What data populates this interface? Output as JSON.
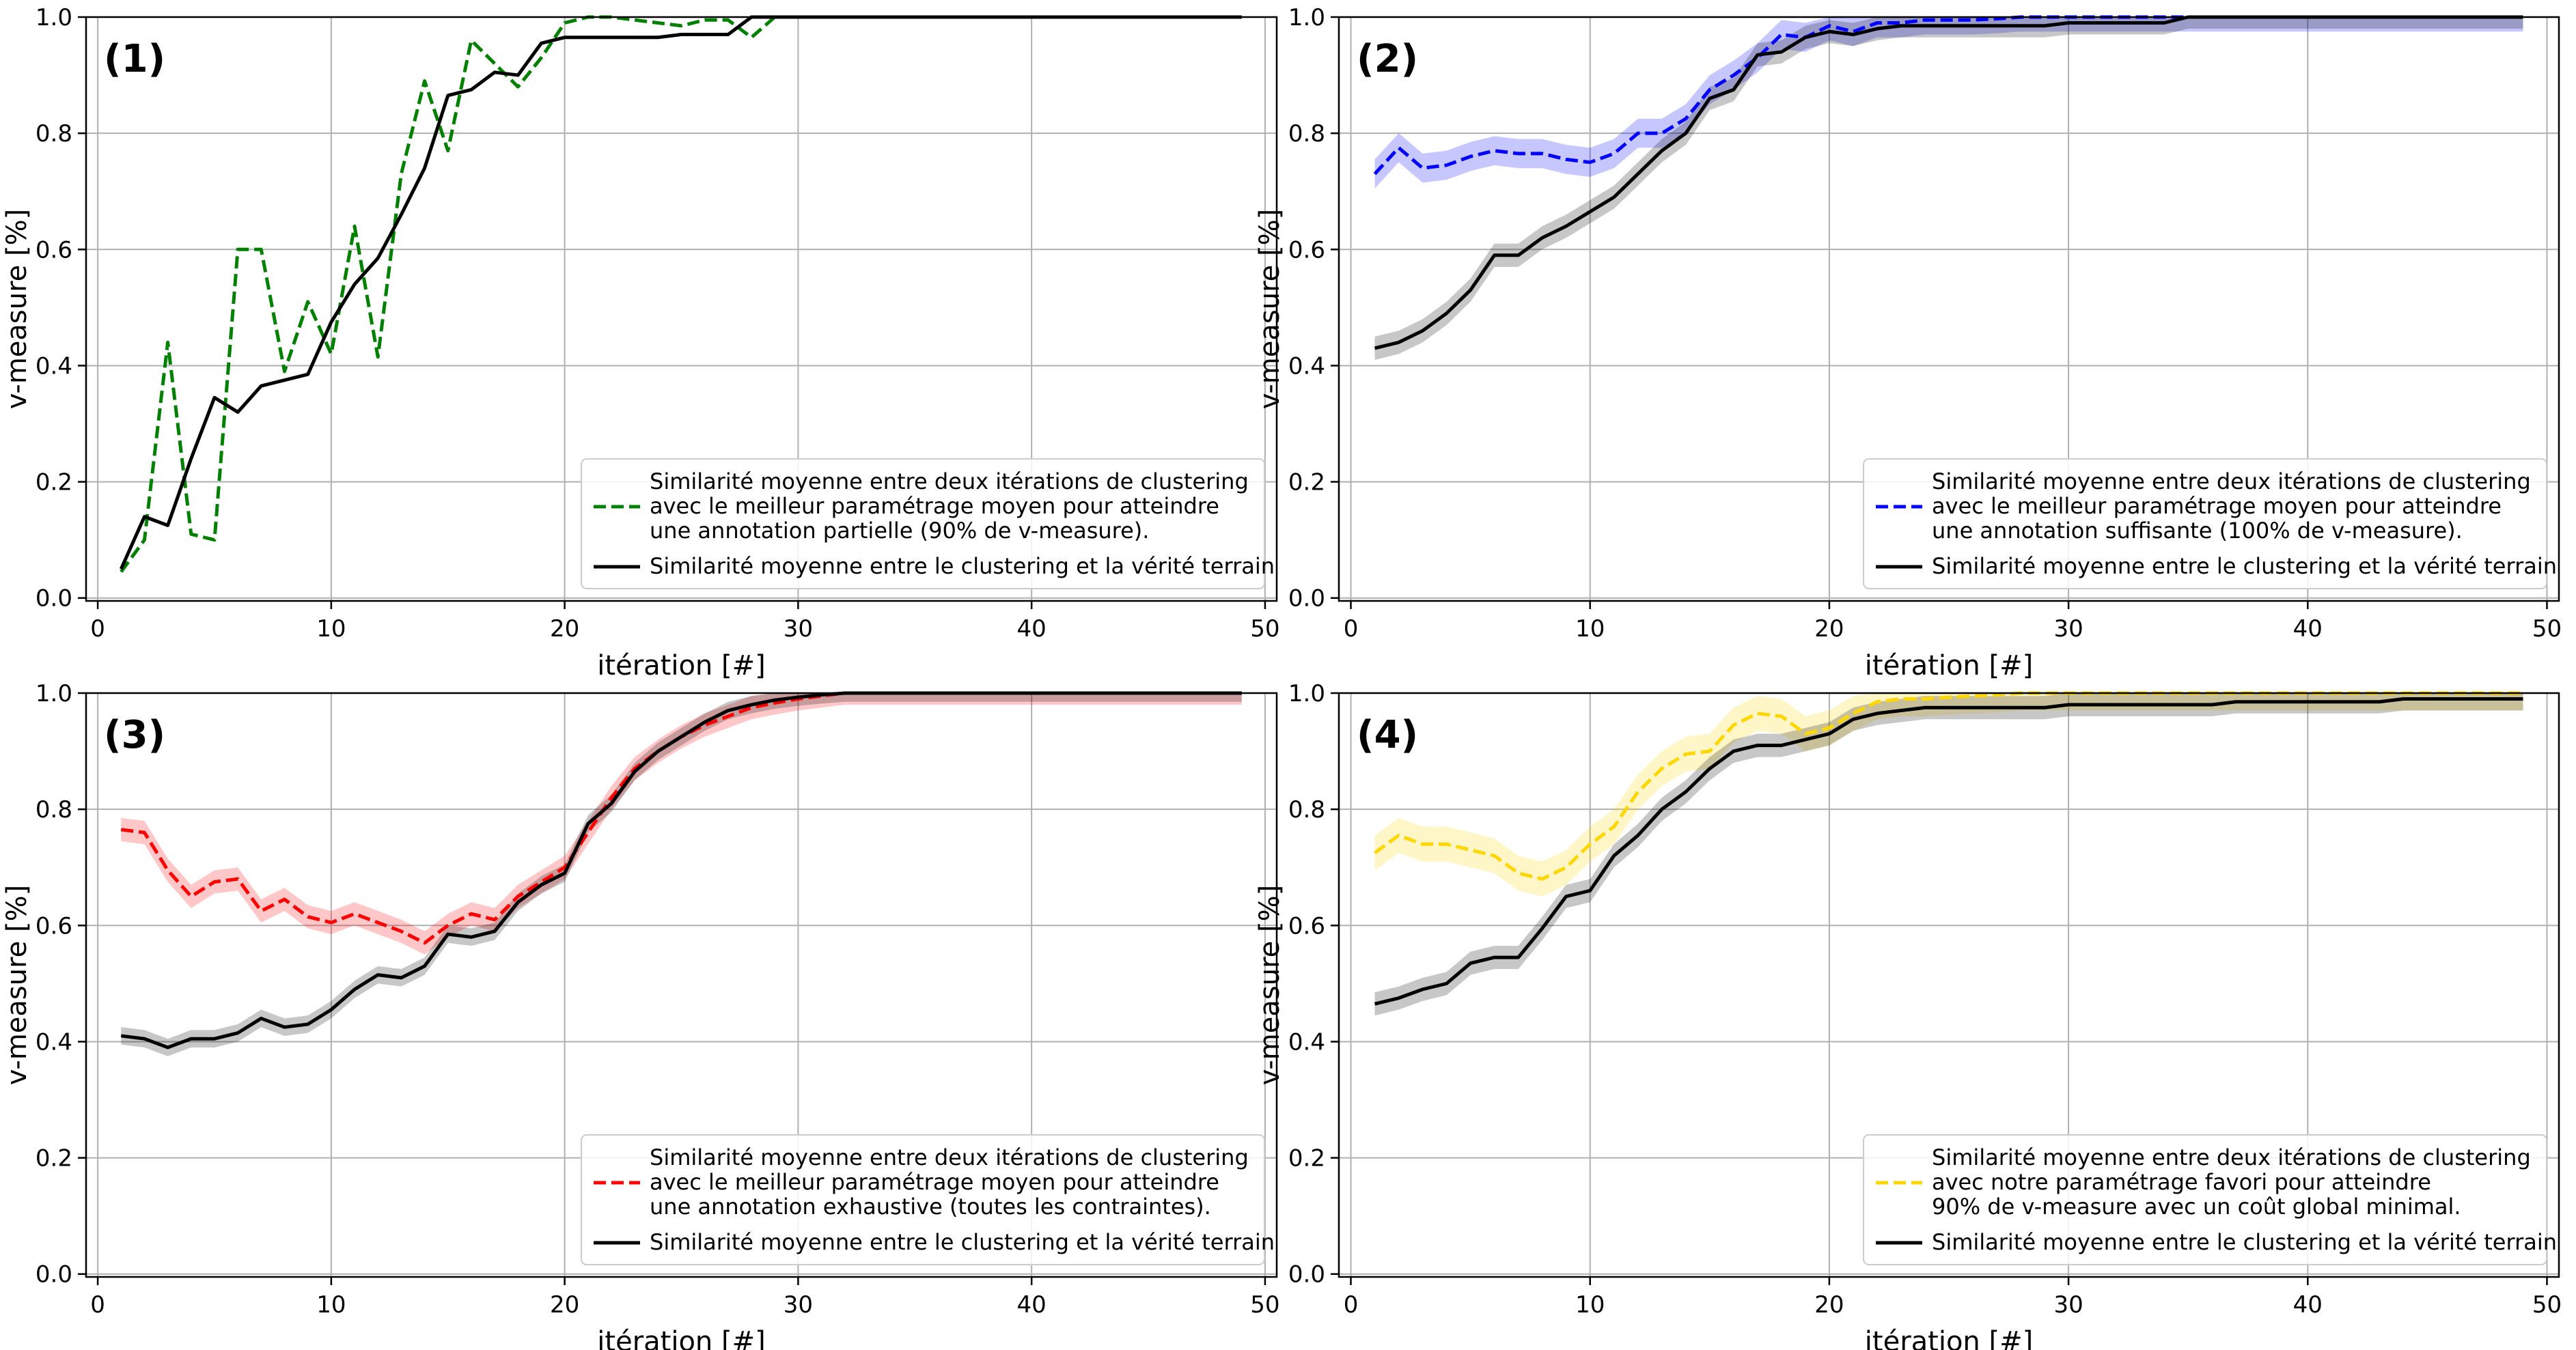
{
  "figure": {
    "xlabel": "itération [#]",
    "ylabel": "v-measure [%]",
    "legend_truth": "Similarité moyenne entre le clustering et la vérité terrain"
  },
  "chart_data": [
    {
      "type": "line",
      "panel_label": "(1)",
      "xlabel": "itération [#]",
      "ylabel": "v-measure [%]",
      "xlim": [
        -0.5,
        50.5
      ],
      "ylim": [
        -0.005,
        1.0
      ],
      "xticks": [
        0,
        10,
        20,
        30,
        40,
        50
      ],
      "yticks": [
        0.0,
        0.2,
        0.4,
        0.6,
        0.8,
        1.0
      ],
      "grid": true,
      "legend_position": "lower-right",
      "series": [
        {
          "name": "Similarité moyenne entre deux itérations de clustering avec le meilleur paramétrage moyen pour atteindre une annotation partielle (90% de v-measure).",
          "legend_lines": [
            "Similarité moyenne entre deux itérations de clustering",
            "avec le meilleur paramétrage moyen pour atteindre",
            "une annotation partielle (90% de v-measure)."
          ],
          "color": "#008000",
          "style": "dashed",
          "x": [
            1,
            2,
            3,
            4,
            5,
            6,
            7,
            8,
            9,
            10,
            11,
            12,
            13,
            14,
            15,
            16,
            17,
            18,
            19,
            20,
            21,
            22,
            23,
            24,
            25,
            26,
            27,
            28,
            29,
            30,
            31,
            32,
            33,
            34,
            35,
            36,
            37,
            38,
            39,
            40,
            41,
            42,
            43,
            44,
            45,
            46,
            47,
            48,
            49
          ],
          "y": [
            0.045,
            0.1,
            0.44,
            0.11,
            0.1,
            0.6,
            0.6,
            0.39,
            0.51,
            0.42,
            0.64,
            0.415,
            0.73,
            0.89,
            0.77,
            0.96,
            0.92,
            0.88,
            0.93,
            0.99,
            1.0,
            1.0,
            0.995,
            0.99,
            0.985,
            0.995,
            0.995,
            0.965,
            1.0,
            1.0,
            1.0,
            1.0,
            1.0,
            1.0,
            1.0,
            1.0,
            1.0,
            1.0,
            1.0,
            1.0,
            1.0,
            1.0,
            1.0,
            1.0,
            1.0,
            1.0,
            1.0,
            1.0,
            1.0
          ]
        },
        {
          "name": "Similarité moyenne entre le clustering et la vérité terrain",
          "color": "#000000",
          "style": "solid",
          "x": [
            1,
            2,
            3,
            4,
            5,
            6,
            7,
            8,
            9,
            10,
            11,
            12,
            13,
            14,
            15,
            16,
            17,
            18,
            19,
            20,
            21,
            22,
            23,
            24,
            25,
            26,
            27,
            28,
            29,
            30,
            31,
            32,
            33,
            34,
            35,
            36,
            37,
            38,
            39,
            40,
            41,
            42,
            43,
            44,
            45,
            46,
            47,
            48,
            49
          ],
          "y": [
            0.05,
            0.14,
            0.125,
            0.24,
            0.345,
            0.32,
            0.365,
            0.375,
            0.385,
            0.475,
            0.54,
            0.585,
            0.66,
            0.74,
            0.865,
            0.875,
            0.905,
            0.9,
            0.955,
            0.965,
            0.965,
            0.965,
            0.965,
            0.965,
            0.97,
            0.97,
            0.97,
            1.0,
            1.0,
            1.0,
            1.0,
            1.0,
            1.0,
            1.0,
            1.0,
            1.0,
            1.0,
            1.0,
            1.0,
            1.0,
            1.0,
            1.0,
            1.0,
            1.0,
            1.0,
            1.0,
            1.0,
            1.0,
            1.0
          ]
        }
      ]
    },
    {
      "type": "line",
      "panel_label": "(2)",
      "xlabel": "itération [#]",
      "ylabel": "v-measure [%]",
      "xlim": [
        -0.5,
        50.5
      ],
      "ylim": [
        -0.005,
        1.0
      ],
      "xticks": [
        0,
        10,
        20,
        30,
        40,
        50
      ],
      "yticks": [
        0.0,
        0.2,
        0.4,
        0.6,
        0.8,
        1.0
      ],
      "grid": true,
      "legend_position": "lower-right",
      "series": [
        {
          "name": "Similarité moyenne entre deux itérations de clustering avec le meilleur paramétrage moyen pour atteindre une annotation suffisante (100% de v-measure).",
          "legend_lines": [
            "Similarité moyenne entre deux itérations de clustering",
            "avec le meilleur paramétrage moyen pour atteindre",
            "une annotation suffisante (100% de v-measure)."
          ],
          "color": "#0000ff",
          "style": "dashed",
          "band": 0.025,
          "x": [
            1,
            2,
            3,
            4,
            5,
            6,
            7,
            8,
            9,
            10,
            11,
            12,
            13,
            14,
            15,
            16,
            17,
            18,
            19,
            20,
            21,
            22,
            23,
            24,
            25,
            26,
            27,
            28,
            29,
            30,
            31,
            32,
            33,
            34,
            35,
            36,
            37,
            38,
            39,
            40,
            41,
            42,
            43,
            44,
            45,
            46,
            47,
            48,
            49
          ],
          "y": [
            0.73,
            0.775,
            0.74,
            0.745,
            0.76,
            0.77,
            0.765,
            0.765,
            0.755,
            0.75,
            0.765,
            0.8,
            0.8,
            0.825,
            0.875,
            0.9,
            0.93,
            0.97,
            0.965,
            0.985,
            0.975,
            0.99,
            0.99,
            0.995,
            0.995,
            0.995,
            0.997,
            1.0,
            1.0,
            1.0,
            1.0,
            1.0,
            1.0,
            1.0,
            1.0,
            1.0,
            1.0,
            1.0,
            1.0,
            1.0,
            1.0,
            1.0,
            1.0,
            1.0,
            1.0,
            1.0,
            1.0,
            1.0,
            1.0
          ]
        },
        {
          "name": "Similarité moyenne entre le clustering et la vérité terrain",
          "color": "#000000",
          "style": "solid",
          "band": 0.02,
          "x": [
            1,
            2,
            3,
            4,
            5,
            6,
            7,
            8,
            9,
            10,
            11,
            12,
            13,
            14,
            15,
            16,
            17,
            18,
            19,
            20,
            21,
            22,
            23,
            24,
            25,
            26,
            27,
            28,
            29,
            30,
            31,
            32,
            33,
            34,
            35,
            36,
            37,
            38,
            39,
            40,
            41,
            42,
            43,
            44,
            45,
            46,
            47,
            48,
            49
          ],
          "y": [
            0.43,
            0.44,
            0.46,
            0.49,
            0.53,
            0.59,
            0.59,
            0.62,
            0.64,
            0.665,
            0.69,
            0.73,
            0.77,
            0.8,
            0.86,
            0.875,
            0.935,
            0.94,
            0.965,
            0.975,
            0.97,
            0.98,
            0.985,
            0.985,
            0.985,
            0.985,
            0.985,
            0.985,
            0.985,
            0.99,
            0.99,
            0.99,
            0.99,
            0.99,
            1.0,
            1.0,
            1.0,
            1.0,
            1.0,
            1.0,
            1.0,
            1.0,
            1.0,
            1.0,
            1.0,
            1.0,
            1.0,
            1.0,
            1.0
          ]
        }
      ]
    },
    {
      "type": "line",
      "panel_label": "(3)",
      "xlabel": "itération [#]",
      "ylabel": "v-measure [%]",
      "xlim": [
        -0.5,
        50.5
      ],
      "ylim": [
        -0.005,
        1.0
      ],
      "xticks": [
        0,
        10,
        20,
        30,
        40,
        50
      ],
      "yticks": [
        0.0,
        0.2,
        0.4,
        0.6,
        0.8,
        1.0
      ],
      "grid": true,
      "legend_position": "lower-right",
      "series": [
        {
          "name": "Similarité moyenne entre deux itérations de clustering avec le meilleur paramétrage moyen pour atteindre une annotation exhaustive (toutes les contraintes).",
          "legend_lines": [
            "Similarité moyenne entre deux itérations de clustering",
            "avec le meilleur paramétrage moyen pour atteindre",
            "une annotation exhaustive (toutes les contraintes)."
          ],
          "color": "#ff0000",
          "style": "dashed",
          "band": 0.02,
          "x": [
            1,
            2,
            3,
            4,
            5,
            6,
            7,
            8,
            9,
            10,
            11,
            12,
            13,
            14,
            15,
            16,
            17,
            18,
            19,
            20,
            21,
            22,
            23,
            24,
            25,
            26,
            27,
            28,
            29,
            30,
            31,
            32,
            33,
            34,
            35,
            36,
            37,
            38,
            39,
            40,
            41,
            42,
            43,
            44,
            45,
            46,
            47,
            48,
            49
          ],
          "y": [
            0.765,
            0.76,
            0.695,
            0.65,
            0.675,
            0.68,
            0.625,
            0.645,
            0.615,
            0.605,
            0.62,
            0.605,
            0.59,
            0.57,
            0.6,
            0.62,
            0.61,
            0.65,
            0.675,
            0.7,
            0.76,
            0.82,
            0.87,
            0.9,
            0.925,
            0.945,
            0.96,
            0.975,
            0.983,
            0.99,
            0.995,
            1.0,
            1.0,
            1.0,
            1.0,
            1.0,
            1.0,
            1.0,
            1.0,
            1.0,
            1.0,
            1.0,
            1.0,
            1.0,
            1.0,
            1.0,
            1.0,
            1.0,
            1.0
          ]
        },
        {
          "name": "Similarité moyenne entre le clustering et la vérité terrain",
          "color": "#000000",
          "style": "solid",
          "band": 0.015,
          "x": [
            1,
            2,
            3,
            4,
            5,
            6,
            7,
            8,
            9,
            10,
            11,
            12,
            13,
            14,
            15,
            16,
            17,
            18,
            19,
            20,
            21,
            22,
            23,
            24,
            25,
            26,
            27,
            28,
            29,
            30,
            31,
            32,
            33,
            34,
            35,
            36,
            37,
            38,
            39,
            40,
            41,
            42,
            43,
            44,
            45,
            46,
            47,
            48,
            49
          ],
          "y": [
            0.41,
            0.405,
            0.39,
            0.405,
            0.405,
            0.415,
            0.44,
            0.425,
            0.43,
            0.455,
            0.49,
            0.515,
            0.51,
            0.53,
            0.585,
            0.58,
            0.59,
            0.64,
            0.67,
            0.69,
            0.775,
            0.81,
            0.865,
            0.9,
            0.925,
            0.95,
            0.97,
            0.98,
            0.988,
            0.993,
            0.997,
            1.0,
            1.0,
            1.0,
            1.0,
            1.0,
            1.0,
            1.0,
            1.0,
            1.0,
            1.0,
            1.0,
            1.0,
            1.0,
            1.0,
            1.0,
            1.0,
            1.0,
            1.0
          ]
        }
      ]
    },
    {
      "type": "line",
      "panel_label": "(4)",
      "xlabel": "itération [#]",
      "ylabel": "v-measure [%]",
      "xlim": [
        -0.5,
        50.5
      ],
      "ylim": [
        -0.005,
        1.0
      ],
      "xticks": [
        0,
        10,
        20,
        30,
        40,
        50
      ],
      "yticks": [
        0.0,
        0.2,
        0.4,
        0.6,
        0.8,
        1.0
      ],
      "grid": true,
      "legend_position": "lower-right",
      "series": [
        {
          "name": "Similarité moyenne entre deux itérations de clustering avec notre paramétrage favori pour atteindre 90% de v-measure avec un coût global minimal.",
          "legend_lines": [
            "Similarité moyenne entre deux itérations de clustering",
            "avec notre paramétrage favori pour atteindre",
            "90% de v-measure avec un coût global minimal."
          ],
          "color": "#ffd700",
          "style": "dashed",
          "band": 0.03,
          "x": [
            1,
            2,
            3,
            4,
            5,
            6,
            7,
            8,
            9,
            10,
            11,
            12,
            13,
            14,
            15,
            16,
            17,
            18,
            19,
            20,
            21,
            22,
            23,
            24,
            25,
            26,
            27,
            28,
            29,
            30,
            31,
            32,
            33,
            34,
            35,
            36,
            37,
            38,
            39,
            40,
            41,
            42,
            43,
            44,
            45,
            46,
            47,
            48,
            49
          ],
          "y": [
            0.725,
            0.755,
            0.74,
            0.74,
            0.73,
            0.72,
            0.69,
            0.68,
            0.7,
            0.74,
            0.77,
            0.83,
            0.87,
            0.895,
            0.9,
            0.945,
            0.965,
            0.96,
            0.93,
            0.94,
            0.965,
            0.985,
            0.99,
            0.99,
            0.993,
            0.995,
            0.997,
            1.0,
            1.0,
            1.0,
            1.0,
            1.0,
            1.0,
            1.0,
            1.0,
            1.0,
            1.0,
            1.0,
            1.0,
            1.0,
            1.0,
            1.0,
            1.0,
            1.0,
            1.0,
            1.0,
            1.0,
            1.0,
            1.0
          ]
        },
        {
          "name": "Similarité moyenne entre le clustering et la vérité terrain",
          "color": "#000000",
          "style": "solid",
          "band": 0.02,
          "x": [
            1,
            2,
            3,
            4,
            5,
            6,
            7,
            8,
            9,
            10,
            11,
            12,
            13,
            14,
            15,
            16,
            17,
            18,
            19,
            20,
            21,
            22,
            23,
            24,
            25,
            26,
            27,
            28,
            29,
            30,
            31,
            32,
            33,
            34,
            35,
            36,
            37,
            38,
            39,
            40,
            41,
            42,
            43,
            44,
            45,
            46,
            47,
            48,
            49
          ],
          "y": [
            0.465,
            0.475,
            0.49,
            0.5,
            0.535,
            0.545,
            0.545,
            0.595,
            0.65,
            0.66,
            0.72,
            0.755,
            0.8,
            0.83,
            0.87,
            0.9,
            0.91,
            0.91,
            0.92,
            0.93,
            0.955,
            0.965,
            0.97,
            0.975,
            0.975,
            0.975,
            0.975,
            0.975,
            0.975,
            0.98,
            0.98,
            0.98,
            0.98,
            0.98,
            0.98,
            0.98,
            0.985,
            0.985,
            0.985,
            0.985,
            0.985,
            0.985,
            0.985,
            0.99,
            0.99,
            0.99,
            0.99,
            0.99,
            0.99
          ]
        }
      ]
    }
  ]
}
